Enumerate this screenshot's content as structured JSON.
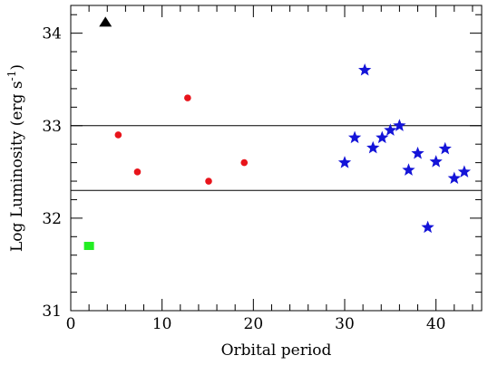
{
  "chart_data": {
    "type": "scatter",
    "title": "",
    "xlabel": "Orbital period",
    "ylabel": "Log Luminosity (erg s",
    "ylabel_superscript": "-1",
    "ylabel_close": ")",
    "xlim": [
      0,
      45
    ],
    "ylim": [
      31,
      34.3
    ],
    "x_ticks": [
      0,
      10,
      20,
      30,
      40
    ],
    "x_tick_labels": [
      "0",
      "10",
      "20",
      "30",
      "40"
    ],
    "y_ticks": [
      31,
      32,
      33,
      34
    ],
    "y_tick_labels": [
      "31",
      "32",
      "33",
      "34"
    ],
    "grid": false,
    "reference_lines_y": [
      33.0,
      32.3
    ],
    "series": [
      {
        "marker": "triangle",
        "color": "#000000",
        "points": [
          {
            "x": 3.8,
            "y": 34.12
          }
        ]
      },
      {
        "marker": "circle",
        "color": "#e8141b",
        "points": [
          {
            "x": 5.2,
            "y": 32.9
          },
          {
            "x": 7.3,
            "y": 32.5
          },
          {
            "x": 12.8,
            "y": 33.3
          },
          {
            "x": 15.1,
            "y": 32.4
          },
          {
            "x": 19.0,
            "y": 32.6
          }
        ]
      },
      {
        "marker": "square",
        "color": "#22ee22",
        "points": [
          {
            "x": 2.0,
            "y": 31.7
          }
        ]
      },
      {
        "marker": "star",
        "color": "#1414d8",
        "points": [
          {
            "x": 30.0,
            "y": 32.6
          },
          {
            "x": 31.1,
            "y": 32.87
          },
          {
            "x": 32.2,
            "y": 33.6
          },
          {
            "x": 33.1,
            "y": 32.76
          },
          {
            "x": 34.1,
            "y": 32.87
          },
          {
            "x": 35.0,
            "y": 32.95
          },
          {
            "x": 36.0,
            "y": 33.0
          },
          {
            "x": 37.0,
            "y": 32.52
          },
          {
            "x": 38.0,
            "y": 32.7
          },
          {
            "x": 39.1,
            "y": 31.9
          },
          {
            "x": 40.0,
            "y": 32.61
          },
          {
            "x": 41.0,
            "y": 32.75
          },
          {
            "x": 42.0,
            "y": 32.43
          },
          {
            "x": 43.1,
            "y": 32.5
          }
        ]
      }
    ]
  }
}
